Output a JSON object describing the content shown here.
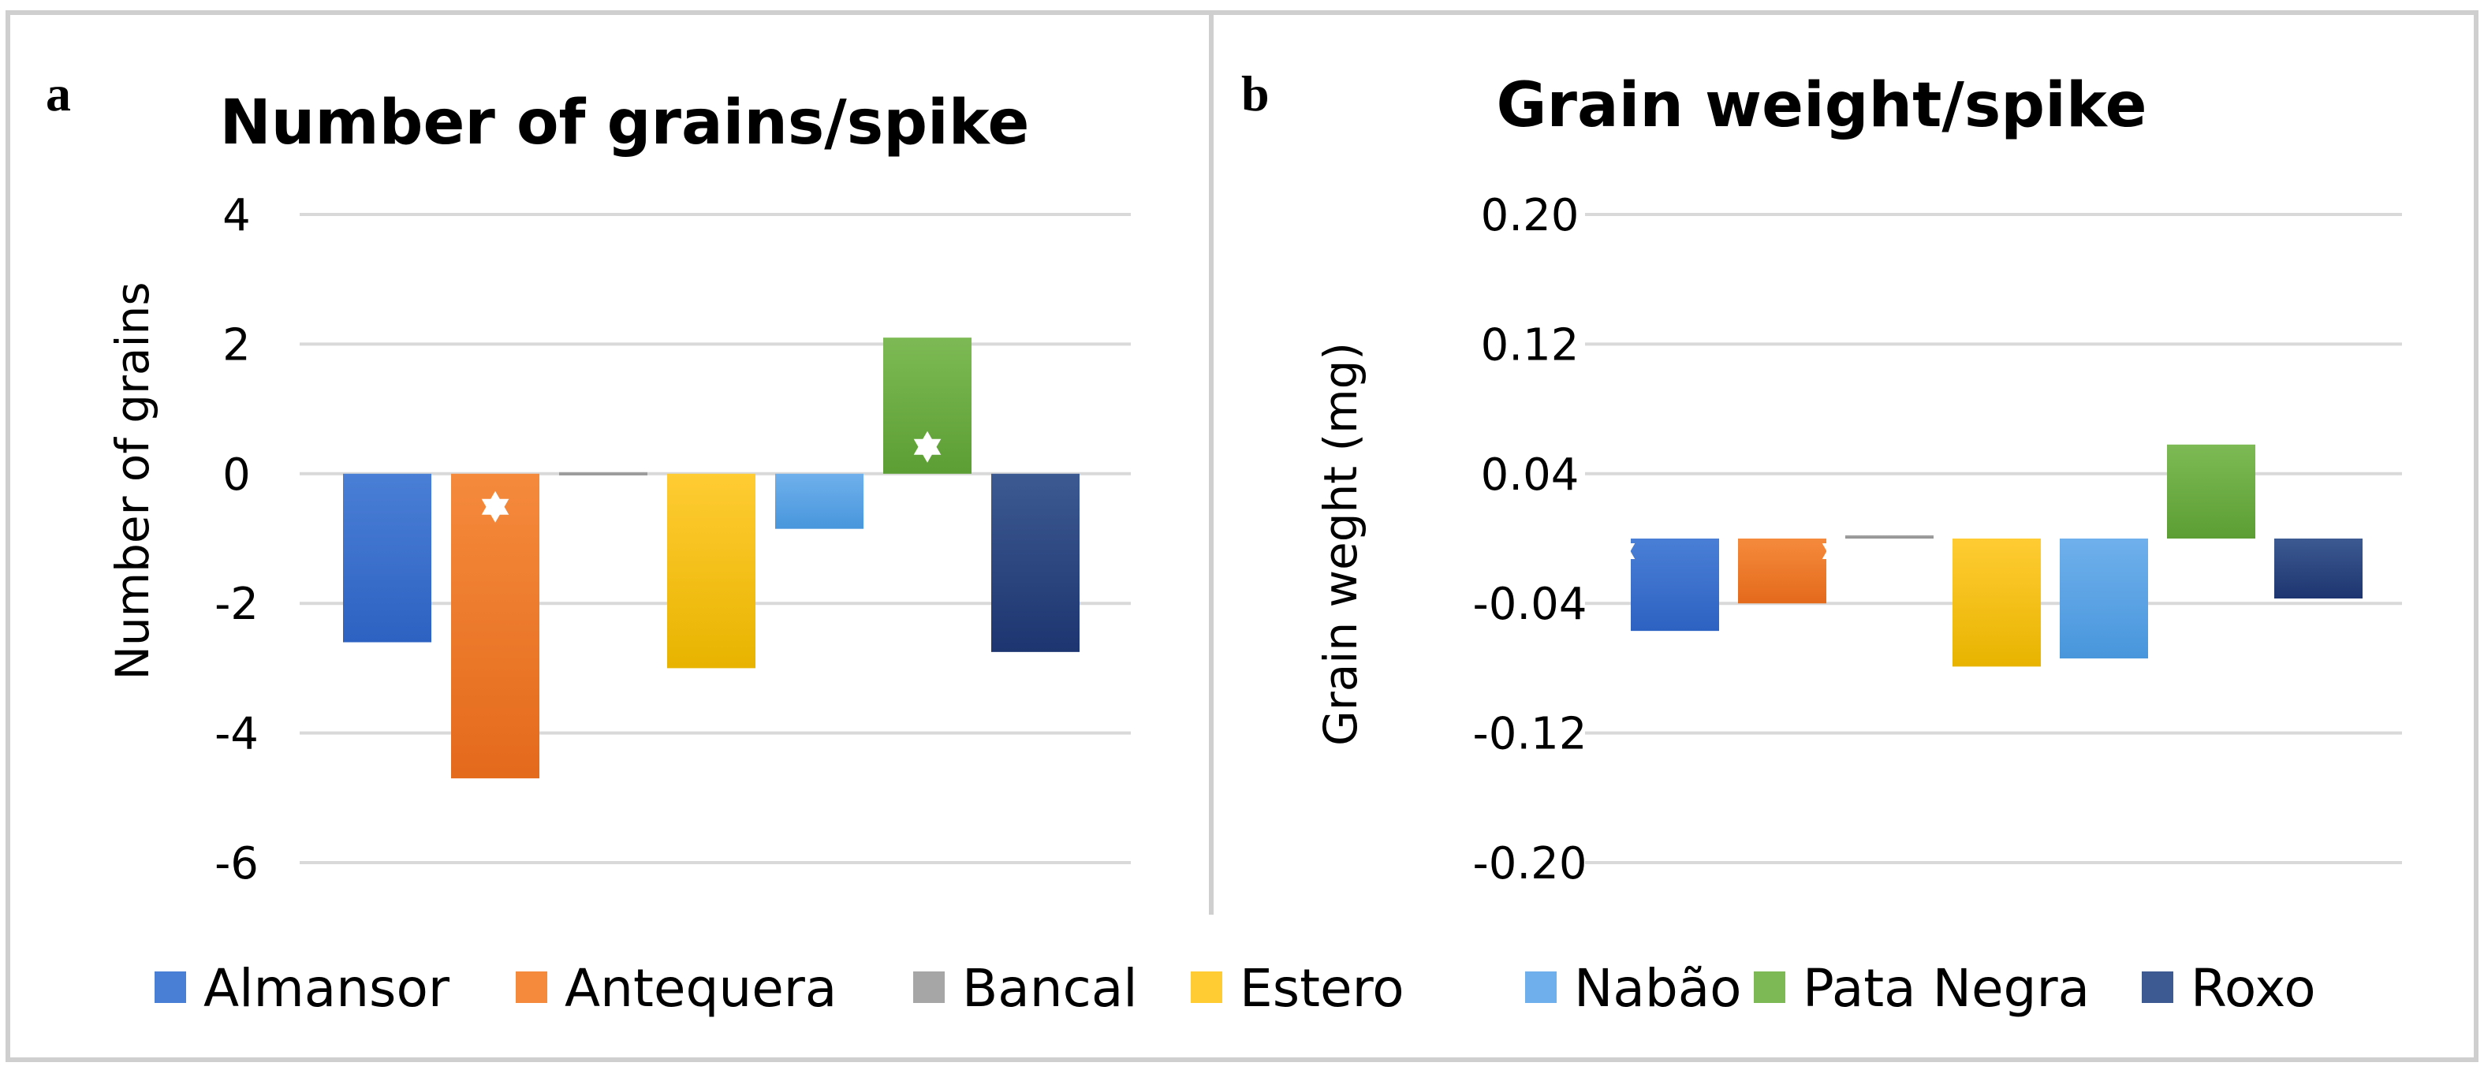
{
  "series_colors": {
    "Almansor": [
      "#4a7fd6",
      "#2e62c2"
    ],
    "Antequera": [
      "#f58a3c",
      "#e46a1c"
    ],
    "Bancal": [
      "#a6a6a6",
      "#909090"
    ],
    "Estero": [
      "#ffcc33",
      "#e8b400"
    ],
    "Nabão": [
      "#6fb0ec",
      "#4896dc"
    ],
    "Pata Negra": [
      "#7dba55",
      "#5c9e33"
    ],
    "Roxo": [
      "#3d5a92",
      "#1d3570"
    ]
  },
  "legend": [
    "Almansor",
    "Antequera",
    "Bancal",
    "Estero",
    "Nabão",
    "Pata Negra",
    "Roxo"
  ],
  "chart_data": [
    {
      "panel": "a",
      "type": "bar",
      "title": "Number of grains/spike",
      "ylabel": "Number of grains",
      "xlabel": "",
      "ylim": [
        -6,
        4
      ],
      "yticks": [
        4,
        2,
        0,
        -2,
        -4,
        -6
      ],
      "ytick_labels": [
        "4",
        "2",
        "0",
        "-2",
        "-4",
        "-6"
      ],
      "grid": true,
      "categories": [
        "Almansor",
        "Antequera",
        "Bancal",
        "Estero",
        "Nabão",
        "Pata Negra",
        "Roxo"
      ],
      "values": [
        -2.6,
        -4.7,
        -0.02,
        -3.0,
        -0.85,
        2.1,
        -2.75
      ],
      "significant": [
        false,
        true,
        false,
        false,
        false,
        true,
        false
      ]
    },
    {
      "panel": "b",
      "type": "bar",
      "title": "Grain weight/spike",
      "ylabel": "Grain weght (mg)",
      "xlabel": "",
      "ylim": [
        -0.2,
        0.2
      ],
      "yticks": [
        0.2,
        0.12,
        0.04,
        -0.04,
        -0.12,
        -0.2
      ],
      "ytick_labels": [
        "0.20",
        "0.12",
        "0.04",
        "-0.04",
        "-0.12",
        "-0.20"
      ],
      "grid": true,
      "categories": [
        "Almansor",
        "Antequera",
        "Bancal",
        "Estero",
        "Nabão",
        "Pata Negra",
        "Roxo"
      ],
      "values": [
        -0.057,
        -0.04,
        0.002,
        -0.079,
        -0.074,
        0.058,
        -0.037
      ],
      "significant": [
        true,
        false,
        true,
        false,
        false,
        false,
        false
      ]
    }
  ]
}
